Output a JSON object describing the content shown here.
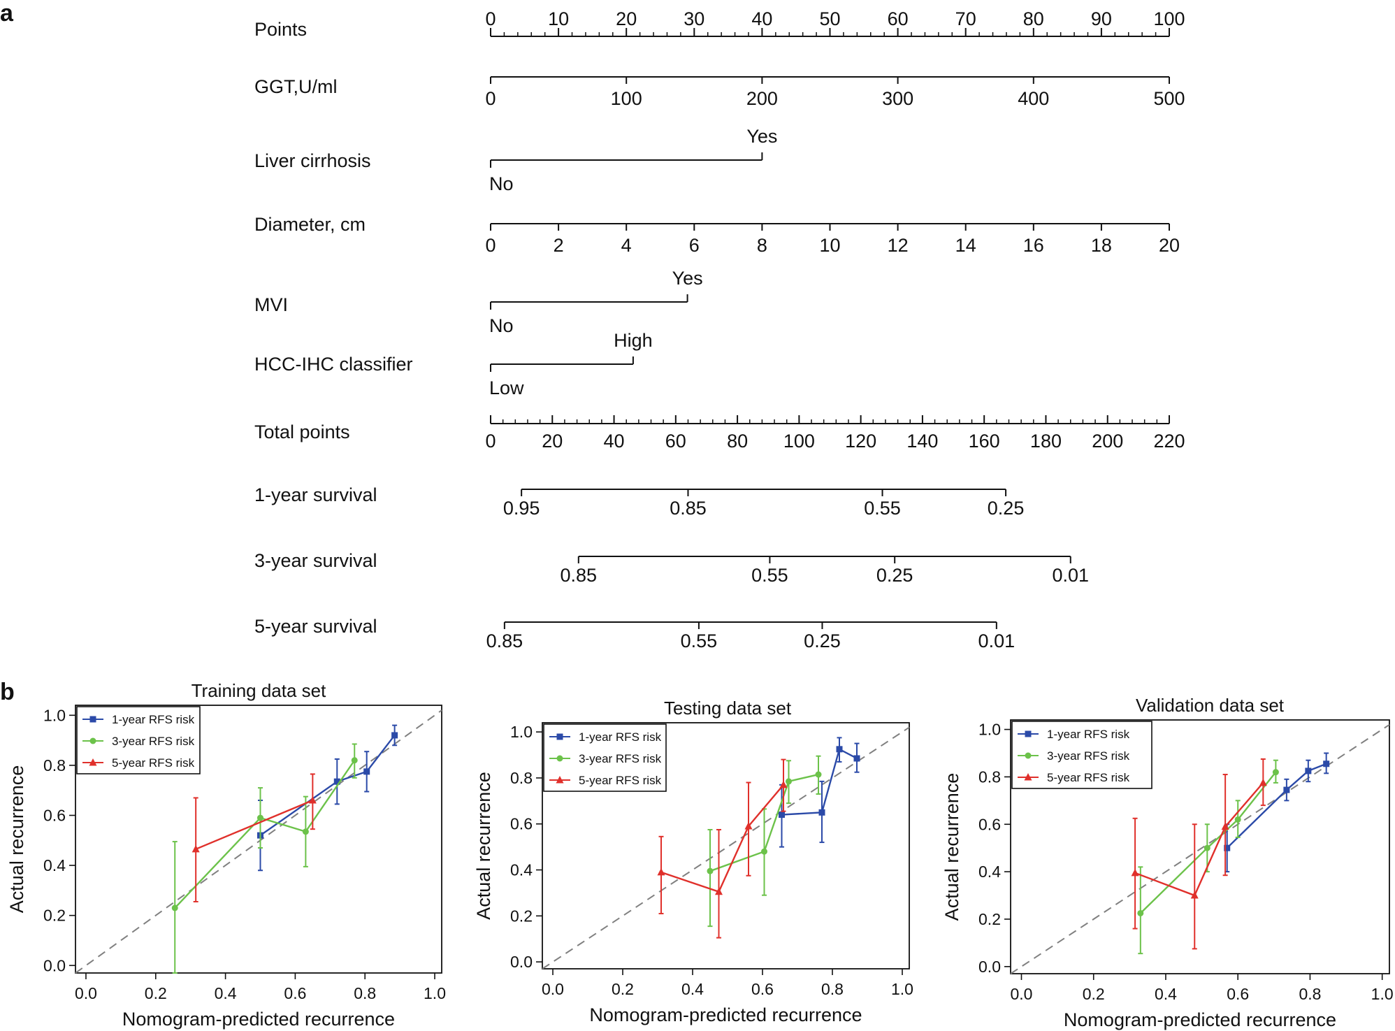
{
  "panel_labels": {
    "a": "a",
    "b": "b"
  },
  "colors": {
    "blue": "#2b4aa8",
    "green": "#6cc24a",
    "red": "#e0302b",
    "diag": "#808080",
    "ink": "#111111"
  },
  "chart_data": [
    {
      "type": "nomogram",
      "panel": "a",
      "rows": [
        {
          "label": "Points",
          "ticks": [
            {
              "value": 0,
              "label": "0"
            },
            {
              "value": 10,
              "label": "10"
            },
            {
              "value": 20,
              "label": "20"
            },
            {
              "value": 30,
              "label": "30"
            },
            {
              "value": 40,
              "label": "40"
            },
            {
              "value": 50,
              "label": "50"
            },
            {
              "value": 60,
              "label": "60"
            },
            {
              "value": 70,
              "label": "70"
            },
            {
              "value": 80,
              "label": "80"
            },
            {
              "value": 90,
              "label": "90"
            },
            {
              "value": 100,
              "label": "100"
            }
          ]
        },
        {
          "label": "GGT,U/ml",
          "ticks": [
            {
              "value": 0,
              "label": "0"
            },
            {
              "value": 100,
              "label": "100"
            },
            {
              "value": 200,
              "label": "200"
            },
            {
              "value": 300,
              "label": "300"
            },
            {
              "value": 400,
              "label": "400"
            },
            {
              "value": 500,
              "label": "500"
            }
          ]
        },
        {
          "label": "Liver cirrhosis",
          "levels": [
            {
              "label": "No",
              "points": 0
            },
            {
              "label": "Yes",
              "points": 40
            }
          ]
        },
        {
          "label": "Diameter, cm",
          "ticks": [
            {
              "value": 0,
              "label": "0"
            },
            {
              "value": 2,
              "label": "2"
            },
            {
              "value": 4,
              "label": "4"
            },
            {
              "value": 6,
              "label": "6"
            },
            {
              "value": 8,
              "label": "8"
            },
            {
              "value": 10,
              "label": "10"
            },
            {
              "value": 12,
              "label": "12"
            },
            {
              "value": 14,
              "label": "14"
            },
            {
              "value": 16,
              "label": "16"
            },
            {
              "value": 18,
              "label": "18"
            },
            {
              "value": 20,
              "label": "20"
            }
          ]
        },
        {
          "label": "MVI",
          "levels": [
            {
              "label": "No",
              "points": 0
            },
            {
              "label": "Yes",
              "points": 29
            }
          ]
        },
        {
          "label": "HCC-IHC classifier",
          "levels": [
            {
              "label": "Low",
              "points": 0
            },
            {
              "label": "High",
              "points": 21
            }
          ]
        },
        {
          "label": "Total points",
          "ticks": [
            {
              "value": 0,
              "label": "0"
            },
            {
              "value": 20,
              "label": "20"
            },
            {
              "value": 40,
              "label": "40"
            },
            {
              "value": 60,
              "label": "60"
            },
            {
              "value": 80,
              "label": "80"
            },
            {
              "value": 100,
              "label": "100"
            },
            {
              "value": 120,
              "label": "120"
            },
            {
              "value": 140,
              "label": "140"
            },
            {
              "value": 160,
              "label": "160"
            },
            {
              "value": 180,
              "label": "180"
            },
            {
              "value": 200,
              "label": "200"
            },
            {
              "value": 220,
              "label": "220"
            }
          ]
        },
        {
          "label": "1-year survival",
          "ticks": [
            {
              "total_points": 10,
              "label": "0.95"
            },
            {
              "total_points": 64,
              "label": "0.85"
            },
            {
              "total_points": 127,
              "label": "0.55"
            },
            {
              "total_points": 167,
              "label": "0.25"
            }
          ]
        },
        {
          "label": "3-year survival",
          "ticks": [
            {
              "total_points": 28.5,
              "label": "0.85"
            },
            {
              "total_points": 90.5,
              "label": "0.55"
            },
            {
              "total_points": 131,
              "label": "0.25"
            },
            {
              "total_points": 188,
              "label": "0.01"
            }
          ]
        },
        {
          "label": "5-year survival",
          "ticks": [
            {
              "total_points": 4.5,
              "label": "0.85"
            },
            {
              "total_points": 67.5,
              "label": "0.55"
            },
            {
              "total_points": 107.5,
              "label": "0.25"
            },
            {
              "total_points": 164,
              "label": "0.01"
            }
          ]
        }
      ]
    },
    {
      "type": "line",
      "panel": "b",
      "title": "Training data set",
      "xlabel": "Nomogram-predicted recurrence",
      "ylabel": "Actual recurrence",
      "xlim": [
        -0.03,
        1.02
      ],
      "ylim": [
        -0.03,
        1.04
      ],
      "xticks": [
        "0.0",
        "0.2",
        "0.4",
        "0.6",
        "0.8",
        "1.0"
      ],
      "yticks": [
        "0.0",
        "0.2",
        "0.4",
        "0.6",
        "0.8",
        "1.0"
      ],
      "diagonal": true,
      "legend": {
        "position": "top-left",
        "entries": [
          "1-year RFS risk",
          "3-year RFS risk",
          "5-year RFS risk"
        ]
      },
      "series": [
        {
          "name": "1-year RFS risk",
          "color": "blue",
          "marker": "square",
          "points": [
            {
              "x": 0.5,
              "y": 0.52,
              "lo": 0.38,
              "hi": 0.66
            },
            {
              "x": 0.72,
              "y": 0.735,
              "lo": 0.645,
              "hi": 0.825
            },
            {
              "x": 0.805,
              "y": 0.775,
              "lo": 0.695,
              "hi": 0.855
            },
            {
              "x": 0.885,
              "y": 0.92,
              "lo": 0.88,
              "hi": 0.96
            }
          ]
        },
        {
          "name": "3-year RFS risk",
          "color": "green",
          "marker": "circle",
          "points": [
            {
              "x": 0.255,
              "y": 0.23,
              "lo": -0.03,
              "hi": 0.495
            },
            {
              "x": 0.5,
              "y": 0.59,
              "lo": 0.47,
              "hi": 0.71
            },
            {
              "x": 0.63,
              "y": 0.535,
              "lo": 0.395,
              "hi": 0.675
            },
            {
              "x": 0.77,
              "y": 0.82,
              "lo": 0.75,
              "hi": 0.885
            }
          ]
        },
        {
          "name": "5-year RFS risk",
          "color": "red",
          "marker": "triangle",
          "points": [
            {
              "x": 0.315,
              "y": 0.465,
              "lo": 0.255,
              "hi": 0.67
            },
            {
              "x": 0.65,
              "y": 0.66,
              "lo": 0.545,
              "hi": 0.765
            }
          ]
        }
      ]
    },
    {
      "type": "line",
      "panel": "b",
      "title": "Testing data set",
      "xlabel": "Nomogram-predicted recurrence",
      "ylabel": "Actual recurrence",
      "xlim": [
        -0.03,
        1.02
      ],
      "ylim": [
        -0.03,
        1.04
      ],
      "xticks": [
        "0.0",
        "0.2",
        "0.4",
        "0.6",
        "0.8",
        "1.0"
      ],
      "yticks": [
        "0.0",
        "0.2",
        "0.4",
        "0.6",
        "0.8",
        "1.0"
      ],
      "diagonal": true,
      "legend": {
        "position": "top-left",
        "entries": [
          "1-year RFS risk",
          "3-year RFS risk",
          "5-year RFS risk"
        ]
      },
      "series": [
        {
          "name": "1-year RFS risk",
          "color": "blue",
          "marker": "square",
          "points": [
            {
              "x": 0.655,
              "y": 0.64,
              "lo": 0.5,
              "hi": 0.77
            },
            {
              "x": 0.77,
              "y": 0.65,
              "lo": 0.52,
              "hi": 0.785
            },
            {
              "x": 0.82,
              "y": 0.925,
              "lo": 0.87,
              "hi": 0.975
            },
            {
              "x": 0.87,
              "y": 0.885,
              "lo": 0.825,
              "hi": 0.95
            }
          ]
        },
        {
          "name": "3-year RFS risk",
          "color": "green",
          "marker": "circle",
          "points": [
            {
              "x": 0.45,
              "y": 0.395,
              "lo": 0.155,
              "hi": 0.575
            },
            {
              "x": 0.605,
              "y": 0.48,
              "lo": 0.29,
              "hi": 0.665
            },
            {
              "x": 0.675,
              "y": 0.785,
              "lo": 0.69,
              "hi": 0.875
            },
            {
              "x": 0.76,
              "y": 0.815,
              "lo": 0.73,
              "hi": 0.895
            }
          ]
        },
        {
          "name": "5-year RFS risk",
          "color": "red",
          "marker": "triangle",
          "points": [
            {
              "x": 0.31,
              "y": 0.39,
              "lo": 0.21,
              "hi": 0.545
            },
            {
              "x": 0.475,
              "y": 0.305,
              "lo": 0.105,
              "hi": 0.575
            },
            {
              "x": 0.56,
              "y": 0.59,
              "lo": 0.375,
              "hi": 0.78
            },
            {
              "x": 0.66,
              "y": 0.77,
              "lo": 0.655,
              "hi": 0.88
            }
          ]
        }
      ]
    },
    {
      "type": "line",
      "panel": "b",
      "title": "Validation data set",
      "xlabel": "Nomogram-predicted recurrence",
      "ylabel": "Actual recurrence",
      "xlim": [
        -0.03,
        1.02
      ],
      "ylim": [
        -0.03,
        1.04
      ],
      "xticks": [
        "0.0",
        "0.2",
        "0.4",
        "0.6",
        "0.8",
        "1.0"
      ],
      "yticks": [
        "0.0",
        "0.2",
        "0.4",
        "0.6",
        "0.8",
        "1.0"
      ],
      "diagonal": true,
      "legend": {
        "position": "top-left",
        "entries": [
          "1-year RFS risk",
          "3-year RFS risk",
          "5-year RFS risk"
        ]
      },
      "series": [
        {
          "name": "1-year RFS risk",
          "color": "blue",
          "marker": "square",
          "points": [
            {
              "x": 0.57,
              "y": 0.5,
              "lo": 0.4,
              "hi": 0.6
            },
            {
              "x": 0.735,
              "y": 0.745,
              "lo": 0.7,
              "hi": 0.79
            },
            {
              "x": 0.795,
              "y": 0.825,
              "lo": 0.78,
              "hi": 0.87
            },
            {
              "x": 0.845,
              "y": 0.855,
              "lo": 0.815,
              "hi": 0.9
            }
          ]
        },
        {
          "name": "3-year RFS risk",
          "color": "green",
          "marker": "circle",
          "points": [
            {
              "x": 0.33,
              "y": 0.225,
              "lo": 0.055,
              "hi": 0.42
            },
            {
              "x": 0.515,
              "y": 0.5,
              "lo": 0.4,
              "hi": 0.6
            },
            {
              "x": 0.6,
              "y": 0.62,
              "lo": 0.545,
              "hi": 0.7
            },
            {
              "x": 0.705,
              "y": 0.82,
              "lo": 0.775,
              "hi": 0.87
            }
          ]
        },
        {
          "name": "5-year RFS risk",
          "color": "red",
          "marker": "triangle",
          "points": [
            {
              "x": 0.315,
              "y": 0.395,
              "lo": 0.16,
              "hi": 0.625
            },
            {
              "x": 0.48,
              "y": 0.3,
              "lo": 0.075,
              "hi": 0.6
            },
            {
              "x": 0.565,
              "y": 0.59,
              "lo": 0.385,
              "hi": 0.81
            },
            {
              "x": 0.67,
              "y": 0.775,
              "lo": 0.68,
              "hi": 0.875
            }
          ]
        }
      ]
    }
  ]
}
